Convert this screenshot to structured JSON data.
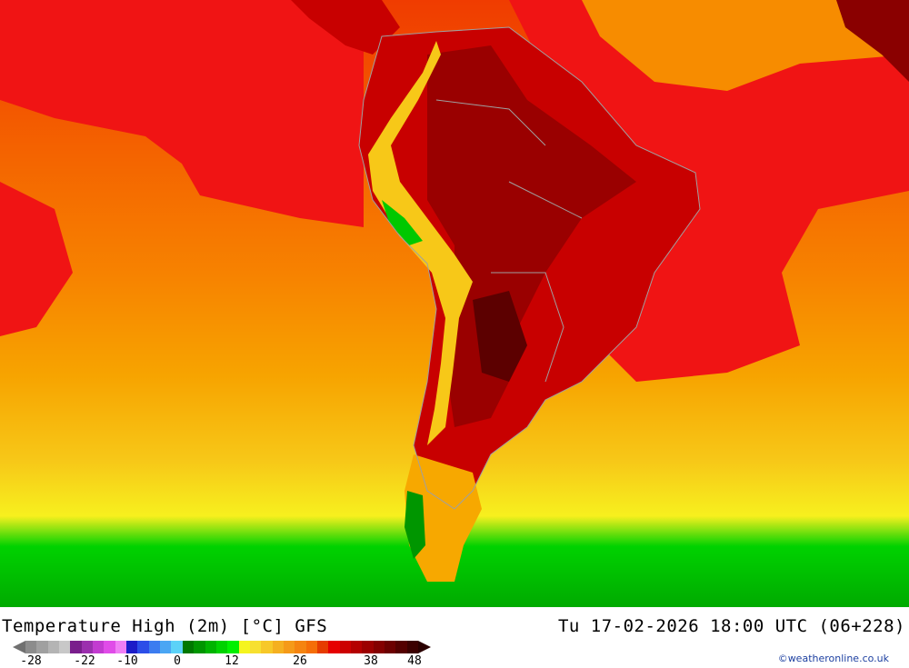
{
  "title": "Temperature High (2m) [°C] GFS",
  "datetime": "Tu 17-02-2026 18:00 UTC (06+228)",
  "credit": "©weatheronline.co.uk",
  "legend": {
    "ticks": [
      "-28",
      "-22",
      "-10",
      "0",
      "12",
      "26",
      "38",
      "48"
    ],
    "colors": [
      "#8c8c8c",
      "#a0a0a0",
      "#b4b4b4",
      "#c8c8c8",
      "#7a1e8c",
      "#9b2fae",
      "#c23bd0",
      "#e04ce8",
      "#f07ef5",
      "#1c1cc8",
      "#2c4ee8",
      "#3c7cf0",
      "#4aa6f4",
      "#5cd2f8",
      "#007800",
      "#009600",
      "#00b400",
      "#00d200",
      "#00f000",
      "#f5f51e",
      "#f7e030",
      "#f7c828",
      "#f5b020",
      "#f59a18",
      "#f58410",
      "#f56e08",
      "#e63c00",
      "#e60000",
      "#cc0000",
      "#b40000",
      "#9c0000",
      "#840000",
      "#6c0000",
      "#540000",
      "#3c0000"
    ]
  },
  "map": {
    "region": "South America",
    "colors": {
      "ocean_warm": "#f05000",
      "ocean_hot": "#f01414",
      "land_very_hot": "#b40000",
      "land_extreme": "#7a0000",
      "mid_orange": "#f78c00",
      "light_orange": "#f7a800",
      "yellow": "#f7e41e",
      "green": "#00c800",
      "dark_green": "#009a00",
      "border_gray": "#a0a0a0"
    }
  }
}
